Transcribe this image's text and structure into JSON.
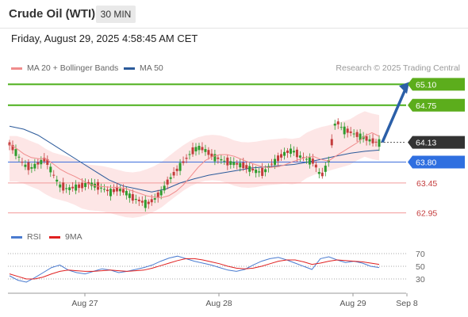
{
  "header": {
    "instrument": "Crude Oil (WTI)",
    "interval": "30 MIN"
  },
  "datetime": "Friday, August 29, 2025 4:58:45 AM CET",
  "legend": {
    "ma20": {
      "label": "MA 20 + Bollinger Bands",
      "color": "#f08c8c"
    },
    "ma50": {
      "label": "MA 50",
      "color": "#2b5a9a"
    },
    "rsi": {
      "label": "RSI",
      "color": "#4a7bd0"
    },
    "ma9": {
      "label": "9MA",
      "color": "#e02020"
    }
  },
  "credit": "Research © 2025 Trading Central",
  "x_ticks": [
    "Aug 27",
    "Aug 28",
    "Aug 29",
    "Sep 8"
  ],
  "chart_data": [
    {
      "type": "line",
      "title": "Crude Oil (WTI) 30 MIN",
      "ylim": [
        62.8,
        65.25
      ],
      "levels": [
        {
          "value": 65.1,
          "label": "65.10",
          "kind": "resistance"
        },
        {
          "value": 64.75,
          "label": "64.75",
          "kind": "resistance"
        },
        {
          "value": 64.13,
          "label": "64.13",
          "kind": "last"
        },
        {
          "value": 63.8,
          "label": "63.80",
          "kind": "pivot"
        },
        {
          "value": 63.45,
          "label": "63.45",
          "kind": "support"
        },
        {
          "value": 62.95,
          "label": "62.95",
          "kind": "support"
        }
      ],
      "price_path": [
        64.1,
        63.95,
        63.75,
        63.7,
        63.78,
        63.85,
        63.6,
        63.4,
        63.35,
        63.38,
        63.4,
        63.45,
        63.4,
        63.35,
        63.3,
        63.35,
        63.3,
        63.2,
        63.15,
        63.1,
        63.18,
        63.3,
        63.5,
        63.65,
        63.8,
        63.95,
        64.05,
        64.0,
        63.9,
        63.85,
        63.8,
        63.78,
        63.75,
        63.7,
        63.65,
        63.62,
        63.75,
        63.85,
        63.95,
        64.0,
        63.9,
        63.85,
        63.8,
        63.55,
        63.8,
        64.5,
        64.35,
        64.3,
        64.25,
        64.2,
        64.15,
        64.13
      ],
      "ma50_path": [
        64.4,
        64.35,
        64.25,
        64.1,
        63.95,
        63.8,
        63.65,
        63.5,
        63.4,
        63.35,
        63.3,
        63.35,
        63.45,
        63.52,
        63.58,
        63.62,
        63.66,
        63.7,
        63.72,
        63.74,
        63.76,
        63.8,
        63.85,
        63.9,
        63.95,
        63.98,
        64.0
      ],
      "projection": {
        "from": 64.13,
        "to": 65.1
      }
    },
    {
      "type": "line",
      "title": "RSI",
      "ylim": [
        10,
        80
      ],
      "y_ticks": [
        "70",
        "50",
        "30"
      ],
      "series": [
        {
          "name": "RSI",
          "values": [
            35,
            28,
            25,
            32,
            40,
            48,
            52,
            44,
            40,
            38,
            42,
            46,
            44,
            40,
            42,
            45,
            48,
            52,
            58,
            63,
            66,
            62,
            58,
            55,
            52,
            48,
            44,
            42,
            45,
            52,
            58,
            62,
            64,
            60,
            55,
            50,
            45,
            62,
            65,
            60,
            56,
            58,
            55,
            50,
            48
          ]
        },
        {
          "name": "9MA",
          "values": [
            38,
            34,
            30,
            30,
            33,
            38,
            42,
            44,
            43,
            42,
            42,
            43,
            44,
            43,
            42,
            43,
            44,
            47,
            51,
            55,
            59,
            62,
            62,
            60,
            57,
            54,
            50,
            47,
            46,
            47,
            50,
            54,
            58,
            60,
            60,
            57,
            53,
            55,
            58,
            60,
            59,
            58,
            57,
            55,
            53
          ]
        }
      ]
    }
  ]
}
